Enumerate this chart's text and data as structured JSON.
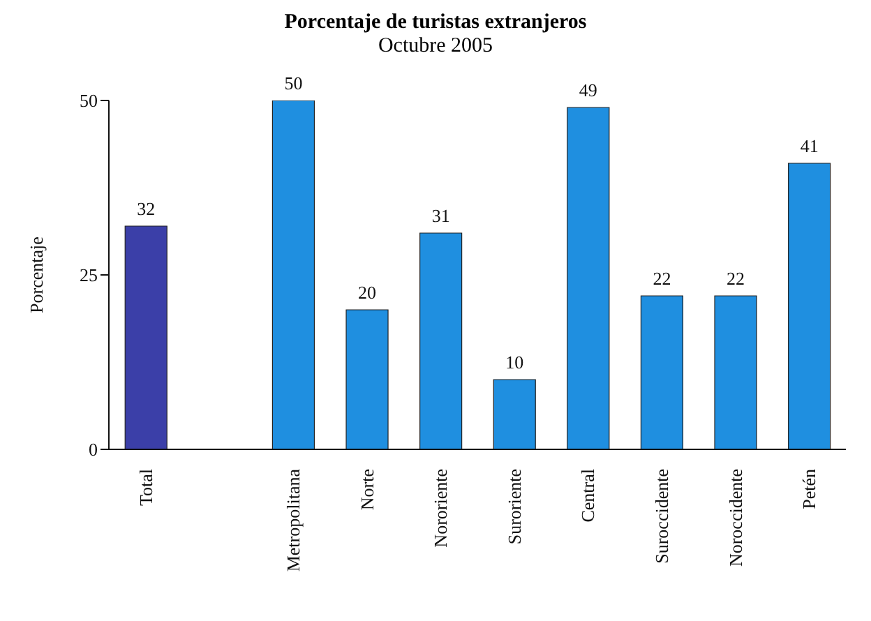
{
  "chart_data": {
    "type": "bar",
    "title": "Porcentaje de turistas extranjeros",
    "subtitle": "Octubre 2005",
    "ylabel": "Porcentaje",
    "categories": [
      "Total",
      null,
      "Metropolitana",
      "Norte",
      "Nororiente",
      "Suroriente",
      "Central",
      "Suroccidente",
      "Noroccidente",
      "Petén"
    ],
    "values": [
      32,
      null,
      50,
      20,
      31,
      10,
      49,
      22,
      22,
      41
    ],
    "colors": [
      "#3b3fa8",
      "#1f8fe0",
      "#1f8fe0",
      "#1f8fe0",
      "#1f8fe0",
      "#1f8fe0",
      "#1f8fe0",
      "#1f8fe0",
      "#1f8fe0",
      "#1f8fe0"
    ],
    "ylim": [
      0,
      50
    ],
    "yticks": [
      0,
      25,
      50
    ],
    "data_labels": true,
    "grid": false
  }
}
